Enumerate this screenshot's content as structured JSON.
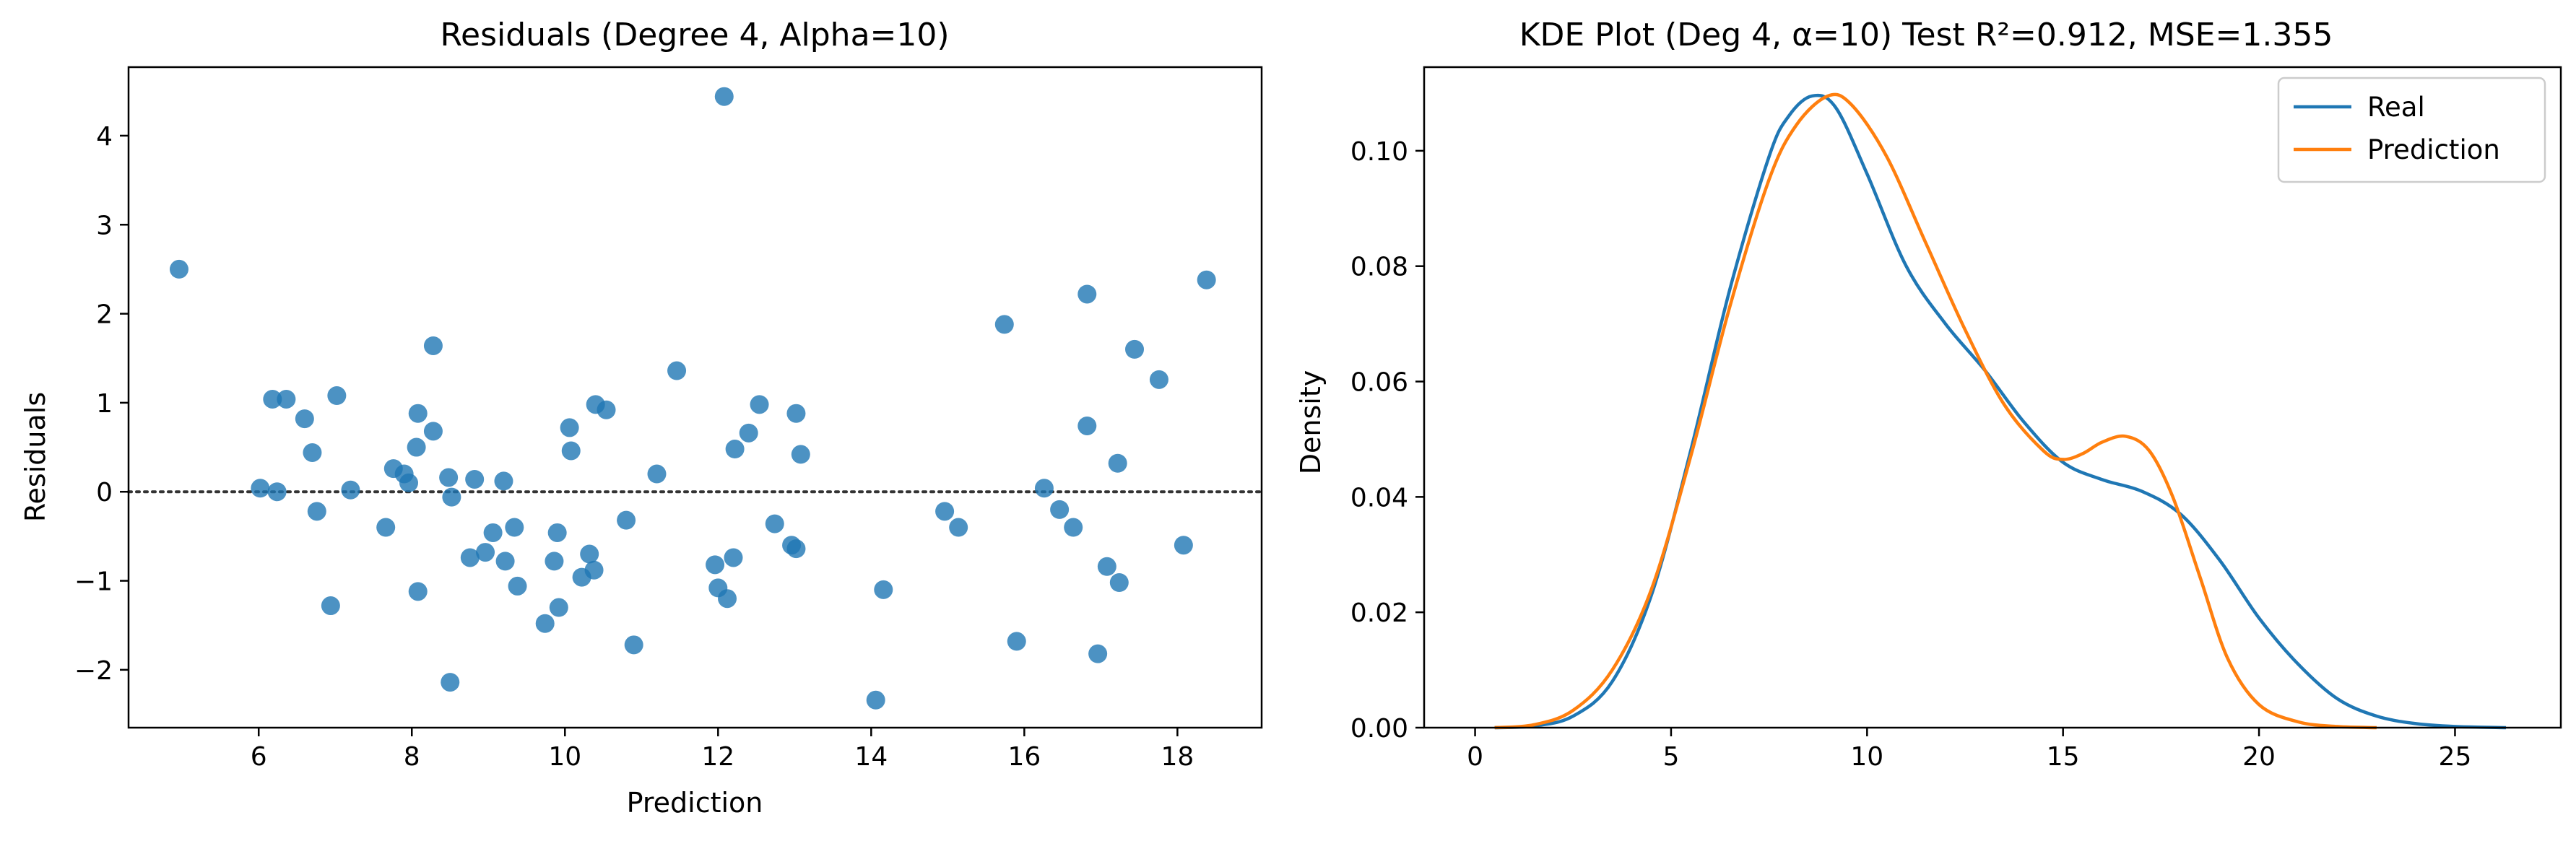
{
  "chart_data": [
    {
      "type": "scatter",
      "title": "Residuals (Degree 4, Alpha=10)",
      "xlabel": "Prediction",
      "ylabel": "Residuals",
      "xlim": [
        4.3,
        19.1
      ],
      "ylim": [
        -2.65,
        4.77
      ],
      "xticks": [
        6,
        8,
        10,
        12,
        14,
        16,
        18
      ],
      "yticks": [
        -2,
        -1,
        0,
        1,
        2,
        3,
        4
      ],
      "xtick_labels": [
        "6",
        "8",
        "10",
        "12",
        "14",
        "16",
        "18"
      ],
      "ytick_labels": [
        "−2",
        "−1",
        "0",
        "1",
        "2",
        "3",
        "4"
      ],
      "reference_line": {
        "y": 0,
        "style": "dotted"
      },
      "grid": false,
      "marker_color": "#1f77b4",
      "points": [
        [
          4.96,
          2.5
        ],
        [
          6.02,
          0.04
        ],
        [
          6.18,
          1.04
        ],
        [
          6.24,
          0.0
        ],
        [
          6.36,
          1.04
        ],
        [
          6.6,
          0.82
        ],
        [
          6.7,
          0.44
        ],
        [
          6.76,
          -0.22
        ],
        [
          6.94,
          -1.28
        ],
        [
          7.02,
          1.08
        ],
        [
          7.2,
          0.02
        ],
        [
          7.66,
          -0.4
        ],
        [
          7.76,
          0.26
        ],
        [
          7.9,
          0.2
        ],
        [
          7.96,
          0.1
        ],
        [
          8.08,
          0.88
        ],
        [
          8.06,
          0.5
        ],
        [
          8.08,
          -1.12
        ],
        [
          8.28,
          1.64
        ],
        [
          8.28,
          0.68
        ],
        [
          8.48,
          0.16
        ],
        [
          8.52,
          -0.06
        ],
        [
          8.5,
          -2.14
        ],
        [
          8.76,
          -0.74
        ],
        [
          8.82,
          0.14
        ],
        [
          8.96,
          -0.68
        ],
        [
          9.06,
          -0.46
        ],
        [
          9.2,
          0.12
        ],
        [
          9.22,
          -0.78
        ],
        [
          9.34,
          -0.4
        ],
        [
          9.38,
          -1.06
        ],
        [
          9.74,
          -1.48
        ],
        [
          9.86,
          -0.78
        ],
        [
          9.9,
          -0.46
        ],
        [
          9.92,
          -1.3
        ],
        [
          10.06,
          0.72
        ],
        [
          10.08,
          0.46
        ],
        [
          10.22,
          -0.96
        ],
        [
          10.32,
          -0.7
        ],
        [
          10.38,
          -0.88
        ],
        [
          10.4,
          0.98
        ],
        [
          10.54,
          0.92
        ],
        [
          10.8,
          -0.32
        ],
        [
          10.9,
          -1.72
        ],
        [
          11.2,
          0.2
        ],
        [
          11.46,
          1.36
        ],
        [
          11.96,
          -0.82
        ],
        [
          12.0,
          -1.08
        ],
        [
          12.08,
          4.44
        ],
        [
          12.12,
          -1.2
        ],
        [
          12.2,
          -0.74
        ],
        [
          12.22,
          0.48
        ],
        [
          12.4,
          0.66
        ],
        [
          12.54,
          0.98
        ],
        [
          12.74,
          -0.36
        ],
        [
          12.96,
          -0.6
        ],
        [
          13.02,
          -0.64
        ],
        [
          13.02,
          0.88
        ],
        [
          13.08,
          0.42
        ],
        [
          14.06,
          -2.34
        ],
        [
          14.16,
          -1.1
        ],
        [
          14.96,
          -0.22
        ],
        [
          15.14,
          -0.4
        ],
        [
          15.74,
          1.88
        ],
        [
          15.9,
          -1.68
        ],
        [
          16.26,
          0.04
        ],
        [
          16.46,
          -0.2
        ],
        [
          16.64,
          -0.4
        ],
        [
          16.82,
          2.22
        ],
        [
          16.82,
          0.74
        ],
        [
          16.96,
          -1.82
        ],
        [
          17.08,
          -0.84
        ],
        [
          17.22,
          0.32
        ],
        [
          17.24,
          -1.02
        ],
        [
          17.44,
          1.6
        ],
        [
          17.76,
          1.26
        ],
        [
          18.08,
          -0.6
        ],
        [
          18.38,
          2.38
        ]
      ]
    },
    {
      "type": "line",
      "title": "KDE Plot (Deg 4, α=10) Test R²=0.912, MSE=1.355",
      "xlabel": "",
      "ylabel": "Density",
      "xlim": [
        -1.3,
        27.7
      ],
      "ylim": [
        0,
        0.1145
      ],
      "xticks": [
        0,
        5,
        10,
        15,
        20,
        25
      ],
      "yticks": [
        0.0,
        0.02,
        0.04,
        0.06,
        0.08,
        0.1
      ],
      "xtick_labels": [
        "0",
        "5",
        "10",
        "15",
        "20",
        "25"
      ],
      "ytick_labels": [
        "0.00",
        "0.02",
        "0.04",
        "0.06",
        "0.08",
        "0.10"
      ],
      "grid": false,
      "legend_position": "top-right",
      "series": [
        {
          "name": "Real",
          "color": "#1f77b4",
          "x": [
            0.5,
            1.5,
            2.5,
            3.5,
            4.5,
            5.5,
            6.5,
            7.5,
            8.0,
            8.6,
            9.2,
            10.0,
            11.0,
            12.0,
            13.0,
            14.0,
            15.0,
            16.0,
            17.0,
            18.0,
            19.0,
            20.0,
            21.0,
            22.0,
            23.0,
            24.0,
            25.0,
            26.3
          ],
          "y": [
            0.0,
            0.0003,
            0.002,
            0.008,
            0.023,
            0.048,
            0.076,
            0.099,
            0.106,
            0.1095,
            0.1075,
            0.096,
            0.08,
            0.07,
            0.062,
            0.053,
            0.046,
            0.043,
            0.041,
            0.037,
            0.029,
            0.019,
            0.011,
            0.005,
            0.002,
            0.0007,
            0.0002,
            0.0
          ]
        },
        {
          "name": "Prediction",
          "color": "#ff7f0e",
          "x": [
            0.5,
            1.5,
            2.5,
            3.5,
            4.5,
            5.5,
            6.5,
            7.5,
            8.2,
            9.0,
            9.6,
            10.5,
            11.5,
            12.5,
            13.5,
            14.5,
            15.0,
            15.5,
            16.0,
            16.6,
            17.2,
            17.8,
            18.5,
            19.2,
            20.0,
            21.0,
            22.0,
            23.0
          ],
          "y": [
            0.0,
            0.0005,
            0.003,
            0.01,
            0.024,
            0.047,
            0.073,
            0.095,
            0.1045,
            0.1095,
            0.108,
            0.099,
            0.084,
            0.069,
            0.056,
            0.048,
            0.0465,
            0.0475,
            0.0495,
            0.0505,
            0.048,
            0.04,
            0.026,
            0.012,
            0.004,
            0.001,
            0.0002,
            0.0
          ]
        }
      ]
    }
  ]
}
